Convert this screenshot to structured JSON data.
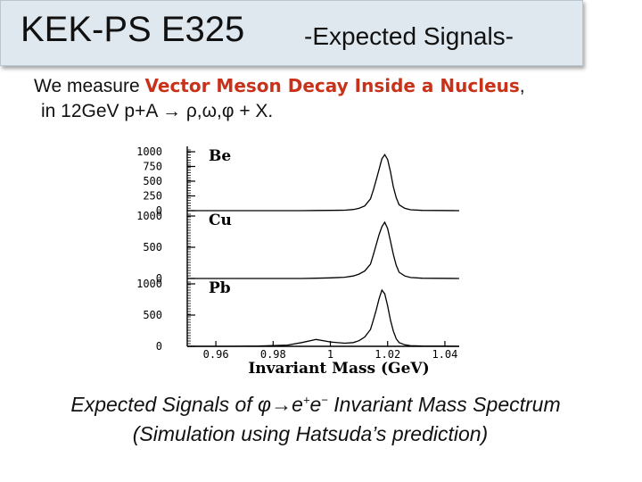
{
  "header": {
    "title": "KEK-PS E325",
    "subtitle": "-Expected Signals-"
  },
  "intro": {
    "line1_prefix": "We measure ",
    "line1_highlight": "Vector Meson Decay Inside a Nucleus",
    "line1_suffix": ",",
    "line2": "in 12GeV p+A → ρ,ω,φ + X."
  },
  "chart_data": {
    "type": "histogram",
    "xlabel": "Invariant Mass (GeV)",
    "x_ticks": [
      "0.96",
      "0.98",
      "1",
      "1.02",
      "1.04"
    ],
    "xlim": [
      0.95,
      1.045
    ],
    "panels": [
      {
        "label": "Be",
        "ylim": [
          0,
          1000
        ],
        "y_ticks": [
          "1000",
          "750",
          "500",
          "250",
          "0"
        ],
        "x": [
          0.95,
          0.965,
          0.98,
          0.99,
          0.995,
          1.0,
          1.005,
          1.008,
          1.01,
          1.012,
          1.014,
          1.015,
          1.016,
          1.017,
          1.018,
          1.019,
          1.02,
          1.021,
          1.022,
          1.023,
          1.024,
          1.026,
          1.028,
          1.032,
          1.045
        ],
        "values": [
          0,
          0,
          0,
          0,
          3,
          5,
          8,
          20,
          40,
          80,
          200,
          350,
          520,
          700,
          880,
          950,
          870,
          660,
          400,
          220,
          100,
          40,
          15,
          5,
          0
        ]
      },
      {
        "label": "Cu",
        "ylim": [
          0,
          1000
        ],
        "y_ticks": [
          "1000",
          "500",
          "0"
        ],
        "x": [
          0.95,
          0.965,
          0.98,
          0.99,
          0.995,
          1.0,
          1.005,
          1.008,
          1.01,
          1.012,
          1.014,
          1.015,
          1.016,
          1.017,
          1.018,
          1.019,
          1.02,
          1.021,
          1.022,
          1.023,
          1.024,
          1.026,
          1.028,
          1.032,
          1.045
        ],
        "values": [
          0,
          0,
          0,
          0,
          5,
          10,
          20,
          40,
          70,
          120,
          230,
          380,
          540,
          700,
          830,
          900,
          800,
          600,
          380,
          210,
          100,
          40,
          15,
          5,
          0
        ]
      },
      {
        "label": "Pb",
        "ylim": [
          0,
          1000
        ],
        "y_ticks": [
          "1000",
          "500",
          "0"
        ],
        "x": [
          0.95,
          0.965,
          0.975,
          0.985,
          0.99,
          0.995,
          1.0,
          1.005,
          1.008,
          1.01,
          1.012,
          1.014,
          1.015,
          1.016,
          1.017,
          1.018,
          1.019,
          1.02,
          1.021,
          1.022,
          1.023,
          1.024,
          1.026,
          1.028,
          1.032,
          1.045
        ],
        "values": [
          0,
          0,
          5,
          20,
          60,
          110,
          70,
          50,
          60,
          90,
          150,
          270,
          420,
          580,
          760,
          900,
          840,
          650,
          420,
          240,
          120,
          60,
          25,
          10,
          5,
          0
        ]
      }
    ]
  },
  "caption": {
    "line1_a": "Expected Signals of φ→e",
    "line1_sup1": "+",
    "line1_b": "e",
    "line1_sup2": "−",
    "line1_c": " Invariant Mass Spectrum",
    "line2": "(Simulation using Hatsuda’s prediction)"
  }
}
